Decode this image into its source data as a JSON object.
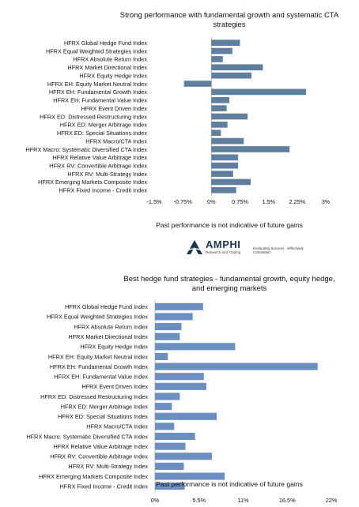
{
  "chart_data": [
    {
      "type": "bar",
      "orientation": "horizontal",
      "title": "Strong performance with fundamental growth and systematic CTA strategies",
      "categories": [
        "HFRX Global Hedge Fund Index",
        "HFRX Equal Weighted Strategies Index",
        "HFRX Absolute Return Index",
        "HFRX Market Directional Index",
        "HFRX Equity Hedge Index",
        "HFRX EH: Equity Market Neutral Index",
        "HFRX EH: Fundamental Growth Index",
        "HFRX EH: Fundamental Value Index",
        "HFRX Event Driven Index",
        "HFRX ED: Distressed Restructuring Index",
        "HFRX ED: Merger Arbitrage Index",
        "HFRX ED: Special Situations Index",
        "HFRX Macro/CTA Index",
        "HFRX Macro: Systematic Diversified CTA Index",
        "HFRX Relative Value Arbitrage Index",
        "HFRX RV: Convertible Arbitrage Index",
        "HFRX RV: Multi-Strategy Index",
        "HFRX Emerging Markets Composite Index",
        "HFRX Fixed Income - Credit Index"
      ],
      "values": [
        0.75,
        0.55,
        0.3,
        1.35,
        1.05,
        -0.72,
        2.48,
        0.47,
        0.4,
        0.95,
        0.42,
        0.25,
        0.85,
        2.05,
        0.7,
        0.7,
        0.57,
        1.03,
        0.65
      ],
      "xlim": [
        -1.5,
        3
      ],
      "xticks": [
        "-1.5%",
        "-0.75%",
        "0%",
        "0.75%",
        "1.5%",
        "2.25%",
        "3%"
      ],
      "xtick_values": [
        -1.5,
        -0.75,
        0,
        0.75,
        1.5,
        2.25,
        3
      ],
      "bar_color": "#5f7f9e",
      "footnote": "Past performance is not indicative of future gains"
    },
    {
      "type": "bar",
      "orientation": "horizontal",
      "title": "Best hedge fund strategies - fundamental growth, equity hedge, and emerging markets",
      "categories": [
        "HFRX Global Hedge Fund Index",
        "HFRX Equal Weighted Strategies Index",
        "HFRX Absolute Return Index",
        "HFRX Market Directional Index",
        "HFRX Equity Hedge Index",
        "HFRX EH: Equity Market Neutral Index",
        "HFRX EH: Fundamental Growth Index",
        "HFRX EH: Fundamental Value Index",
        "HFRX Event Driven Index",
        "HFRX ED: Distressed Restructuring Index",
        "HFRX ED: Merger Arbitrage Index",
        "HFRX ED: Special Situations Index",
        "HFRX Macro/CTA Index",
        "HFRX Macro: Systematic Diversified CTA Index",
        "HFRX Relative Value Arbitrage Index",
        "HFRX RV: Convertible Arbitrage Index",
        "HFRX RV: Multi-Strategy Index",
        "HFRX Emerging Markets Composite Index",
        "HFRX Fixed Income - Credit Index"
      ],
      "values": [
        6.0,
        4.7,
        3.3,
        3.1,
        10.0,
        1.6,
        20.3,
        6.1,
        6.4,
        3.1,
        2.1,
        7.7,
        2.4,
        5.0,
        3.8,
        7.1,
        3.6,
        8.7,
        3.7
      ],
      "xlim": [
        0,
        22
      ],
      "xticks": [
        "0%",
        "5.5%",
        "11%",
        "16.5%",
        "22%"
      ],
      "xtick_values": [
        0,
        5.5,
        11,
        16.5,
        22
      ],
      "bar_color": "#6b8fc0",
      "footnote": "Past performance is not indicative of future gains"
    }
  ],
  "logo": {
    "name": "AMPHI",
    "subtitle": "Research and Trading",
    "tagline": "Evaluating Success - Effectively Committed"
  }
}
